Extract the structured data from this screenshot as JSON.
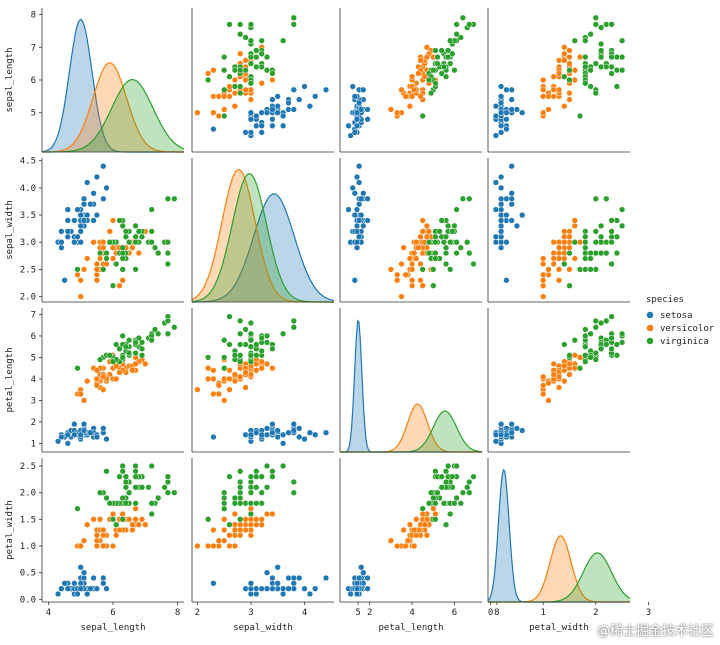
{
  "chart_data": {
    "type": "scatter",
    "title": "",
    "variables": [
      "sepal_length",
      "sepal_width",
      "petal_length",
      "petal_width"
    ],
    "axis_ranges": {
      "sepal_length": [
        3.8,
        8.2
      ],
      "sepal_width": [
        1.9,
        4.55
      ],
      "petal_length": [
        0.6,
        7.3
      ],
      "petal_width": [
        -0.05,
        2.65
      ]
    },
    "ticks": {
      "sepal_length": [
        4,
        6,
        8
      ],
      "sepal_width": [
        2,
        3,
        4,
        5
      ],
      "petal_length": [
        2,
        4,
        6,
        8
      ],
      "petal_width": [
        0,
        1,
        2,
        3
      ]
    },
    "y_ticks": {
      "sepal_length": [
        "5",
        "6",
        "7",
        "8"
      ],
      "sepal_width": [
        "2.0",
        "2.5",
        "3.0",
        "3.5",
        "4.0",
        "4.5"
      ],
      "petal_length": [
        "1",
        "2",
        "3",
        "4",
        "5",
        "6",
        "7"
      ],
      "petal_width": [
        "0.0",
        "0.5",
        "1.0",
        "1.5",
        "2.0",
        "2.5"
      ]
    },
    "legend": {
      "title": "species",
      "placement": "right",
      "entries": [
        {
          "name": "setosa",
          "color": "#1f77b4"
        },
        {
          "name": "versicolor",
          "color": "#ff7f0e"
        },
        {
          "name": "virginica",
          "color": "#2ca02c"
        }
      ]
    },
    "density_curves": {
      "sepal_length": [
        {
          "species": "setosa",
          "mean": 5.0,
          "sd": 0.35
        },
        {
          "species": "versicolor",
          "mean": 5.9,
          "sd": 0.52
        },
        {
          "species": "virginica",
          "mean": 6.6,
          "sd": 0.64
        }
      ],
      "sepal_width": [
        {
          "species": "setosa",
          "mean": 3.43,
          "sd": 0.38
        },
        {
          "species": "versicolor",
          "mean": 2.77,
          "sd": 0.31
        },
        {
          "species": "virginica",
          "mean": 2.97,
          "sd": 0.32
        }
      ],
      "petal_length": [
        {
          "species": "setosa",
          "mean": 1.46,
          "sd": 0.17
        },
        {
          "species": "versicolor",
          "mean": 4.26,
          "sd": 0.47
        },
        {
          "species": "virginica",
          "mean": 5.55,
          "sd": 0.55
        }
      ],
      "petal_width": [
        {
          "species": "setosa",
          "mean": 0.25,
          "sd": 0.1
        },
        {
          "species": "versicolor",
          "mean": 1.33,
          "sd": 0.2
        },
        {
          "species": "virginica",
          "mean": 2.03,
          "sd": 0.27
        }
      ]
    },
    "series": [
      {
        "name": "setosa",
        "points": [
          [
            5.1,
            3.5,
            1.4,
            0.2
          ],
          [
            4.9,
            3.0,
            1.4,
            0.2
          ],
          [
            4.7,
            3.2,
            1.3,
            0.2
          ],
          [
            4.6,
            3.1,
            1.5,
            0.2
          ],
          [
            5.0,
            3.6,
            1.4,
            0.2
          ],
          [
            5.4,
            3.9,
            1.7,
            0.4
          ],
          [
            4.6,
            3.4,
            1.4,
            0.3
          ],
          [
            5.0,
            3.4,
            1.5,
            0.2
          ],
          [
            4.4,
            2.9,
            1.4,
            0.2
          ],
          [
            4.9,
            3.1,
            1.5,
            0.1
          ],
          [
            5.4,
            3.7,
            1.5,
            0.2
          ],
          [
            4.8,
            3.4,
            1.6,
            0.2
          ],
          [
            4.8,
            3.0,
            1.4,
            0.1
          ],
          [
            4.3,
            3.0,
            1.1,
            0.1
          ],
          [
            5.8,
            4.0,
            1.2,
            0.2
          ],
          [
            5.7,
            4.4,
            1.5,
            0.4
          ],
          [
            5.4,
            3.9,
            1.3,
            0.4
          ],
          [
            5.1,
            3.5,
            1.4,
            0.3
          ],
          [
            5.7,
            3.8,
            1.7,
            0.3
          ],
          [
            5.1,
            3.8,
            1.5,
            0.3
          ],
          [
            5.4,
            3.4,
            1.7,
            0.2
          ],
          [
            5.1,
            3.7,
            1.5,
            0.4
          ],
          [
            4.6,
            3.6,
            1.0,
            0.2
          ],
          [
            5.1,
            3.3,
            1.7,
            0.5
          ],
          [
            4.8,
            3.4,
            1.9,
            0.2
          ],
          [
            5.0,
            3.0,
            1.6,
            0.2
          ],
          [
            5.0,
            3.4,
            1.6,
            0.4
          ],
          [
            5.2,
            3.5,
            1.5,
            0.2
          ],
          [
            5.2,
            3.4,
            1.4,
            0.2
          ],
          [
            4.7,
            3.2,
            1.6,
            0.2
          ],
          [
            4.8,
            3.1,
            1.6,
            0.2
          ],
          [
            5.4,
            3.4,
            1.5,
            0.4
          ],
          [
            5.2,
            4.1,
            1.5,
            0.1
          ],
          [
            5.5,
            4.2,
            1.4,
            0.2
          ],
          [
            4.9,
            3.1,
            1.5,
            0.2
          ],
          [
            5.0,
            3.2,
            1.2,
            0.2
          ],
          [
            5.5,
            3.5,
            1.3,
            0.2
          ],
          [
            4.9,
            3.6,
            1.4,
            0.1
          ],
          [
            4.4,
            3.0,
            1.3,
            0.2
          ],
          [
            5.1,
            3.4,
            1.5,
            0.2
          ],
          [
            5.0,
            3.5,
            1.3,
            0.3
          ],
          [
            4.5,
            2.3,
            1.3,
            0.3
          ],
          [
            4.4,
            3.2,
            1.3,
            0.2
          ],
          [
            5.0,
            3.5,
            1.6,
            0.6
          ],
          [
            5.1,
            3.8,
            1.9,
            0.4
          ],
          [
            4.8,
            3.0,
            1.4,
            0.3
          ],
          [
            5.1,
            3.8,
            1.6,
            0.2
          ],
          [
            4.6,
            3.2,
            1.4,
            0.2
          ],
          [
            5.3,
            3.7,
            1.5,
            0.2
          ],
          [
            5.0,
            3.3,
            1.4,
            0.2
          ]
        ]
      },
      {
        "name": "versicolor",
        "points": [
          [
            7.0,
            3.2,
            4.7,
            1.4
          ],
          [
            6.4,
            3.2,
            4.5,
            1.5
          ],
          [
            6.9,
            3.1,
            4.9,
            1.5
          ],
          [
            5.5,
            2.3,
            4.0,
            1.3
          ],
          [
            6.5,
            2.8,
            4.6,
            1.5
          ],
          [
            5.7,
            2.8,
            4.5,
            1.3
          ],
          [
            6.3,
            3.3,
            4.7,
            1.6
          ],
          [
            4.9,
            2.4,
            3.3,
            1.0
          ],
          [
            6.6,
            2.9,
            4.6,
            1.3
          ],
          [
            5.2,
            2.7,
            3.9,
            1.4
          ],
          [
            5.0,
            2.0,
            3.5,
            1.0
          ],
          [
            5.9,
            3.0,
            4.2,
            1.5
          ],
          [
            6.0,
            2.2,
            4.0,
            1.0
          ],
          [
            6.1,
            2.9,
            4.7,
            1.4
          ],
          [
            5.6,
            2.9,
            3.6,
            1.3
          ],
          [
            6.7,
            3.1,
            4.4,
            1.4
          ],
          [
            5.6,
            3.0,
            4.5,
            1.5
          ],
          [
            5.8,
            2.7,
            4.1,
            1.0
          ],
          [
            6.2,
            2.2,
            4.5,
            1.5
          ],
          [
            5.6,
            2.5,
            3.9,
            1.1
          ],
          [
            5.9,
            3.2,
            4.8,
            1.8
          ],
          [
            6.1,
            2.8,
            4.0,
            1.3
          ],
          [
            6.3,
            2.5,
            4.9,
            1.5
          ],
          [
            6.1,
            2.8,
            4.7,
            1.2
          ],
          [
            6.4,
            2.9,
            4.3,
            1.3
          ],
          [
            6.6,
            3.0,
            4.4,
            1.4
          ],
          [
            6.8,
            2.8,
            4.8,
            1.4
          ],
          [
            6.7,
            3.0,
            5.0,
            1.7
          ],
          [
            6.0,
            2.9,
            4.5,
            1.5
          ],
          [
            5.7,
            2.6,
            3.5,
            1.0
          ],
          [
            5.5,
            2.4,
            3.8,
            1.1
          ],
          [
            5.5,
            2.4,
            3.7,
            1.0
          ],
          [
            5.8,
            2.7,
            3.9,
            1.2
          ],
          [
            6.0,
            2.7,
            5.1,
            1.6
          ],
          [
            5.4,
            3.0,
            4.5,
            1.5
          ],
          [
            6.0,
            3.4,
            4.5,
            1.6
          ],
          [
            6.7,
            3.1,
            4.7,
            1.5
          ],
          [
            6.3,
            2.3,
            4.4,
            1.3
          ],
          [
            5.6,
            3.0,
            4.1,
            1.3
          ],
          [
            5.5,
            2.5,
            4.0,
            1.3
          ],
          [
            5.5,
            2.6,
            4.4,
            1.2
          ],
          [
            6.1,
            3.0,
            4.6,
            1.4
          ],
          [
            5.8,
            2.6,
            4.0,
            1.2
          ],
          [
            5.0,
            2.3,
            3.3,
            1.0
          ],
          [
            5.6,
            2.7,
            4.2,
            1.3
          ],
          [
            5.7,
            3.0,
            4.2,
            1.2
          ],
          [
            5.7,
            2.9,
            4.2,
            1.3
          ],
          [
            6.2,
            2.9,
            4.3,
            1.3
          ],
          [
            5.1,
            2.5,
            3.0,
            1.1
          ],
          [
            5.7,
            2.8,
            4.1,
            1.3
          ]
        ]
      },
      {
        "name": "virginica",
        "points": [
          [
            6.3,
            3.3,
            6.0,
            2.5
          ],
          [
            5.8,
            2.7,
            5.1,
            1.9
          ],
          [
            7.1,
            3.0,
            5.9,
            2.1
          ],
          [
            6.3,
            2.9,
            5.6,
            1.8
          ],
          [
            6.5,
            3.0,
            5.8,
            2.2
          ],
          [
            7.6,
            3.0,
            6.6,
            2.1
          ],
          [
            4.9,
            2.5,
            4.5,
            1.7
          ],
          [
            7.3,
            2.9,
            6.3,
            1.8
          ],
          [
            6.7,
            2.5,
            5.8,
            1.8
          ],
          [
            7.2,
            3.6,
            6.1,
            2.5
          ],
          [
            6.5,
            3.2,
            5.1,
            2.0
          ],
          [
            6.4,
            2.7,
            5.3,
            1.9
          ],
          [
            6.8,
            3.0,
            5.5,
            2.1
          ],
          [
            5.7,
            2.5,
            5.0,
            2.0
          ],
          [
            5.8,
            2.8,
            5.1,
            2.4
          ],
          [
            6.4,
            3.2,
            5.3,
            2.3
          ],
          [
            6.5,
            3.0,
            5.5,
            1.8
          ],
          [
            7.7,
            3.8,
            6.7,
            2.2
          ],
          [
            7.7,
            2.6,
            6.9,
            2.3
          ],
          [
            6.0,
            2.2,
            5.0,
            1.5
          ],
          [
            6.9,
            3.2,
            5.7,
            2.3
          ],
          [
            5.6,
            2.8,
            4.9,
            2.0
          ],
          [
            7.7,
            2.8,
            6.7,
            2.0
          ],
          [
            6.3,
            2.7,
            4.9,
            1.8
          ],
          [
            6.7,
            3.3,
            5.7,
            2.1
          ],
          [
            7.2,
            3.2,
            6.0,
            1.8
          ],
          [
            6.2,
            2.8,
            4.8,
            1.8
          ],
          [
            6.1,
            3.0,
            4.9,
            1.8
          ],
          [
            6.4,
            2.8,
            5.6,
            2.1
          ],
          [
            7.2,
            3.0,
            5.8,
            1.6
          ],
          [
            7.4,
            2.8,
            6.1,
            1.9
          ],
          [
            7.9,
            3.8,
            6.4,
            2.0
          ],
          [
            6.4,
            2.8,
            5.6,
            2.2
          ],
          [
            6.3,
            2.8,
            5.1,
            1.5
          ],
          [
            6.1,
            2.6,
            5.6,
            1.4
          ],
          [
            7.7,
            3.0,
            6.1,
            2.3
          ],
          [
            6.3,
            3.4,
            5.6,
            2.4
          ],
          [
            6.4,
            3.1,
            5.5,
            1.8
          ],
          [
            6.0,
            3.0,
            4.8,
            1.8
          ],
          [
            6.9,
            3.1,
            5.4,
            2.1
          ],
          [
            6.7,
            3.1,
            5.6,
            2.4
          ],
          [
            6.9,
            3.1,
            5.1,
            2.3
          ],
          [
            5.8,
            2.7,
            5.1,
            1.9
          ],
          [
            6.8,
            3.2,
            5.9,
            2.3
          ],
          [
            6.7,
            3.3,
            5.7,
            2.5
          ],
          [
            6.7,
            3.0,
            5.2,
            2.3
          ],
          [
            6.3,
            2.5,
            5.0,
            1.9
          ],
          [
            6.5,
            3.0,
            5.2,
            2.0
          ],
          [
            6.2,
            3.4,
            5.4,
            2.3
          ],
          [
            5.9,
            3.0,
            5.1,
            1.8
          ]
        ]
      }
    ]
  },
  "watermark": "@稀土掘金技术社区"
}
